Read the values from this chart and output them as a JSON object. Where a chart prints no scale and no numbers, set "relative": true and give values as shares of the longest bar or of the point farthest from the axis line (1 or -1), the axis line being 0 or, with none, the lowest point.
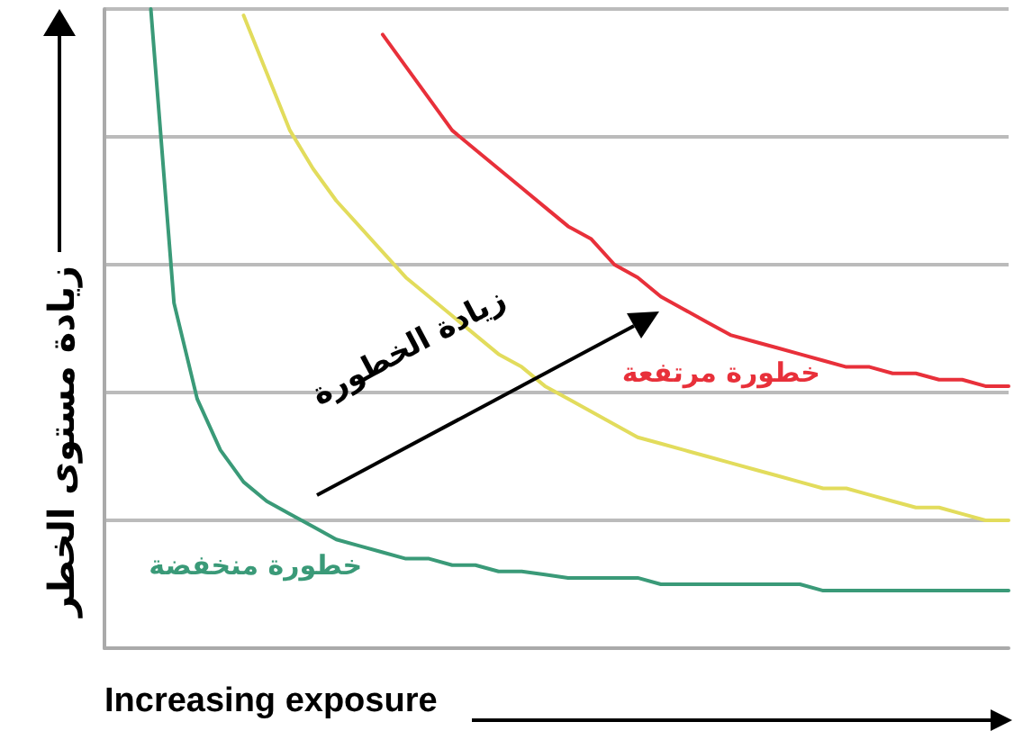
{
  "chart_data": {
    "type": "line",
    "relative": true,
    "grid": "y",
    "marker": "none",
    "line_style": "solid",
    "xlabel": "Increasing exposure",
    "ylabel": "زيادة مستوى الخطر",
    "annotations": [
      "زيادة الخطورة"
    ],
    "categories": [
      null,
      null,
      null,
      null,
      null,
      null,
      null,
      null,
      null,
      null,
      null,
      null,
      null,
      null,
      null,
      null,
      null,
      null,
      null,
      null,
      null,
      null,
      null,
      null,
      null,
      null,
      null,
      null,
      null,
      null,
      null,
      null,
      null,
      null,
      null,
      null,
      null,
      null,
      null,
      null
    ],
    "series": [
      {
        "name": "خطورة منخفضة",
        "color": "#3a9a78",
        "values": [
          null,
          null,
          1.0,
          0.54,
          0.39,
          0.31,
          0.26,
          0.23,
          0.21,
          0.19,
          0.17,
          0.16,
          0.15,
          0.14,
          0.14,
          0.13,
          0.13,
          0.12,
          0.12,
          0.115,
          0.11,
          0.11,
          0.11,
          0.11,
          0.1,
          0.1,
          0.1,
          0.1,
          0.1,
          0.1,
          0.1,
          0.09,
          0.09,
          0.09,
          0.09,
          0.09,
          0.09,
          0.09,
          0.09,
          0.09
        ]
      },
      {
        "color": "#e2dc5c",
        "values": [
          null,
          null,
          null,
          null,
          null,
          null,
          0.99,
          0.9,
          0.81,
          0.75,
          0.7,
          0.66,
          0.62,
          0.58,
          0.55,
          0.52,
          0.49,
          0.46,
          0.44,
          0.41,
          0.39,
          0.37,
          0.35,
          0.33,
          0.32,
          0.31,
          0.3,
          0.29,
          0.28,
          0.27,
          0.26,
          0.25,
          0.25,
          0.24,
          0.23,
          0.22,
          0.22,
          0.21,
          0.2,
          0.2
        ]
      },
      {
        "name": "خطورة مرتفعة",
        "color": "#e8303a",
        "values": [
          null,
          null,
          null,
          null,
          null,
          null,
          null,
          null,
          null,
          null,
          null,
          null,
          0.96,
          0.91,
          0.86,
          0.81,
          0.78,
          0.75,
          0.72,
          0.69,
          0.66,
          0.64,
          0.6,
          0.58,
          0.55,
          0.53,
          0.51,
          0.49,
          0.48,
          0.47,
          0.46,
          0.45,
          0.44,
          0.44,
          0.43,
          0.43,
          0.42,
          0.42,
          0.41,
          0.41
        ]
      }
    ]
  }
}
